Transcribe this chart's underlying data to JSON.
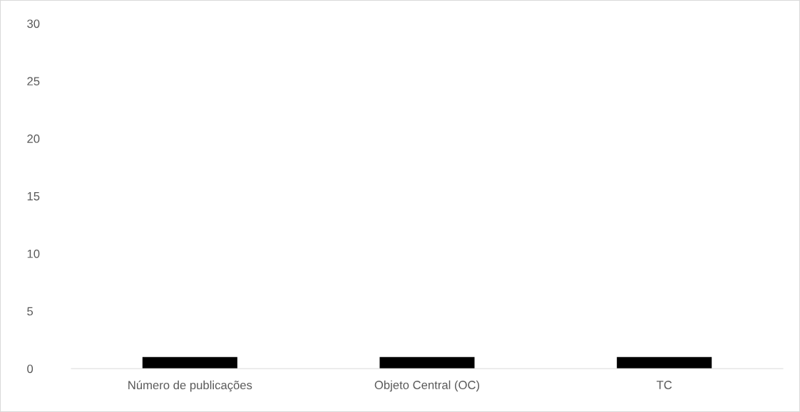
{
  "chart_data": {
    "type": "bar",
    "categories": [
      "Número de publicações",
      "Objeto Central (OC)",
      "TC"
    ],
    "values": [
      1,
      1,
      1
    ],
    "color": "#000000",
    "ylim": [
      0,
      30
    ],
    "yticks": [
      0,
      5,
      10,
      15,
      20,
      25,
      30
    ],
    "grid": false,
    "legend": false
  }
}
